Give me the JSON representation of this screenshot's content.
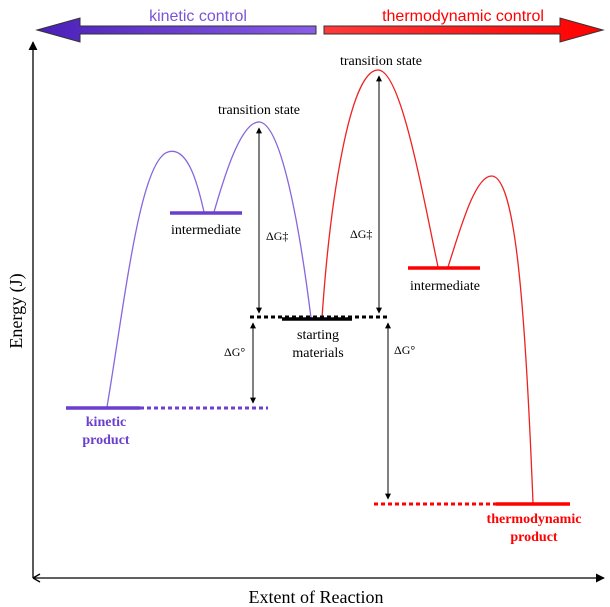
{
  "header": {
    "kinetic_label": "kinetic control",
    "thermo_label": "thermodynamic control"
  },
  "axes": {
    "y_label": "Energy (J)",
    "x_label": "Extent of Reaction"
  },
  "labels": {
    "ts_left": "transition state",
    "ts_right": "transition state",
    "intermediate_left": "intermediate",
    "intermediate_right": "intermediate",
    "starting_line1": "starting",
    "starting_line2": "materials",
    "kinetic_line1": "kinetic",
    "kinetic_line2": "product",
    "thermo_line1": "thermodynamic",
    "thermo_line2": "product",
    "dg_act_left": "ΔG‡",
    "dg_act_right": "ΔG‡",
    "dg_std_left": "ΔG°",
    "dg_std_right": "ΔG°"
  },
  "colors": {
    "kinetic": "#7a55d6",
    "kinetic_bar": "#6a3fcf",
    "thermo": "#ff0000",
    "neutral": "#000000"
  }
}
